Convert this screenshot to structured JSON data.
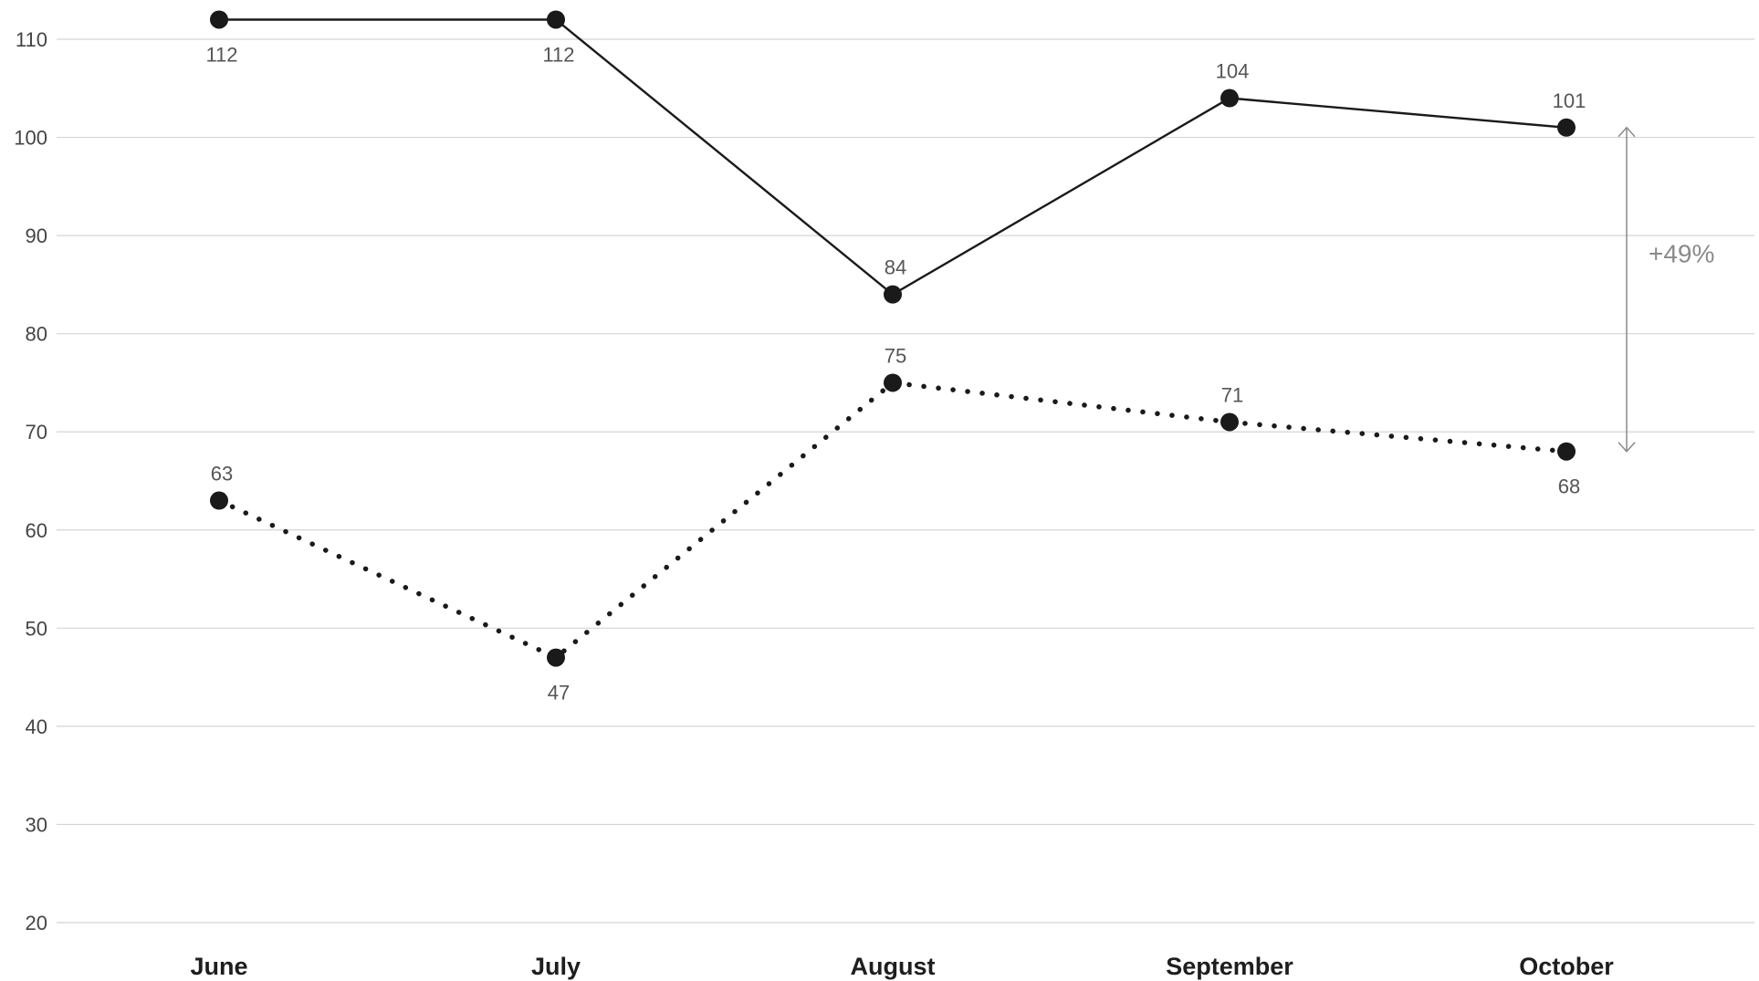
{
  "chart_data": {
    "type": "line",
    "categories": [
      "June",
      "July",
      "August",
      "September",
      "October"
    ],
    "series": [
      {
        "line_style": "solid",
        "values": [
          112,
          112,
          84,
          104,
          101
        ],
        "labels": [
          "112",
          "112",
          "84",
          "104",
          "101"
        ],
        "label_position": [
          "below",
          "below",
          "above",
          "above",
          "above"
        ]
      },
      {
        "line_style": "dotted",
        "values": [
          63,
          47,
          75,
          71,
          68
        ],
        "labels": [
          "63",
          "47",
          "75",
          "71",
          "68"
        ],
        "label_position": [
          "above",
          "below",
          "above",
          "above",
          "below"
        ]
      }
    ],
    "ylim": [
      20,
      112
    ],
    "yticks": [
      20,
      30,
      40,
      50,
      60,
      70,
      80,
      90,
      100,
      110
    ],
    "grid": true,
    "annotation": {
      "text": "+49%",
      "from_value": 101,
      "to_value": 68,
      "placement": "right of October"
    },
    "colors": {
      "line": "#1a1a1a",
      "marker": "#1a1a1a",
      "grid": "#d4d4d4",
      "annotation": "#8a8a8a"
    }
  }
}
